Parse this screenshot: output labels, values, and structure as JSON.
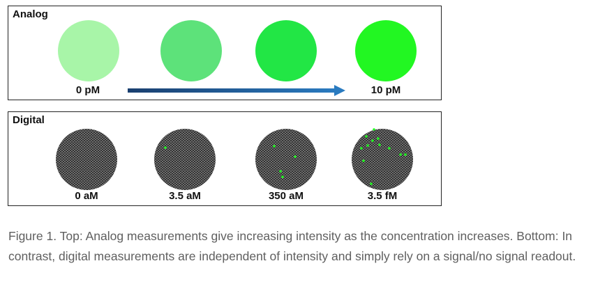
{
  "figure": {
    "analog": {
      "title": "Analog",
      "circles": [
        {
          "color": "#a8f5a8"
        },
        {
          "color": "#5de27a"
        },
        {
          "color": "#22e645"
        },
        {
          "color": "#22f722"
        }
      ],
      "label_start": "0 pM",
      "label_end": "10 pM",
      "arrow_colors": [
        "#1a3f6f",
        "#2a7bc0"
      ]
    },
    "digital": {
      "title": "Digital",
      "wells": [
        {
          "label": "0 aM",
          "green_count": 0
        },
        {
          "label": "3.5 aM",
          "green_count": 1
        },
        {
          "label": "350 aM",
          "green_count": 4
        },
        {
          "label": "3.5 fM",
          "green_count": 12
        }
      ],
      "well_base_color": "#3a3a3a",
      "green_color": "#22ff22"
    }
  },
  "caption": {
    "text": "Figure 1. Top: Analog measurements give increasing intensity as the concentration increases. Bottom: In contrast, digital measurements are independent of intensity and simply rely on a signal/no signal readout."
  }
}
